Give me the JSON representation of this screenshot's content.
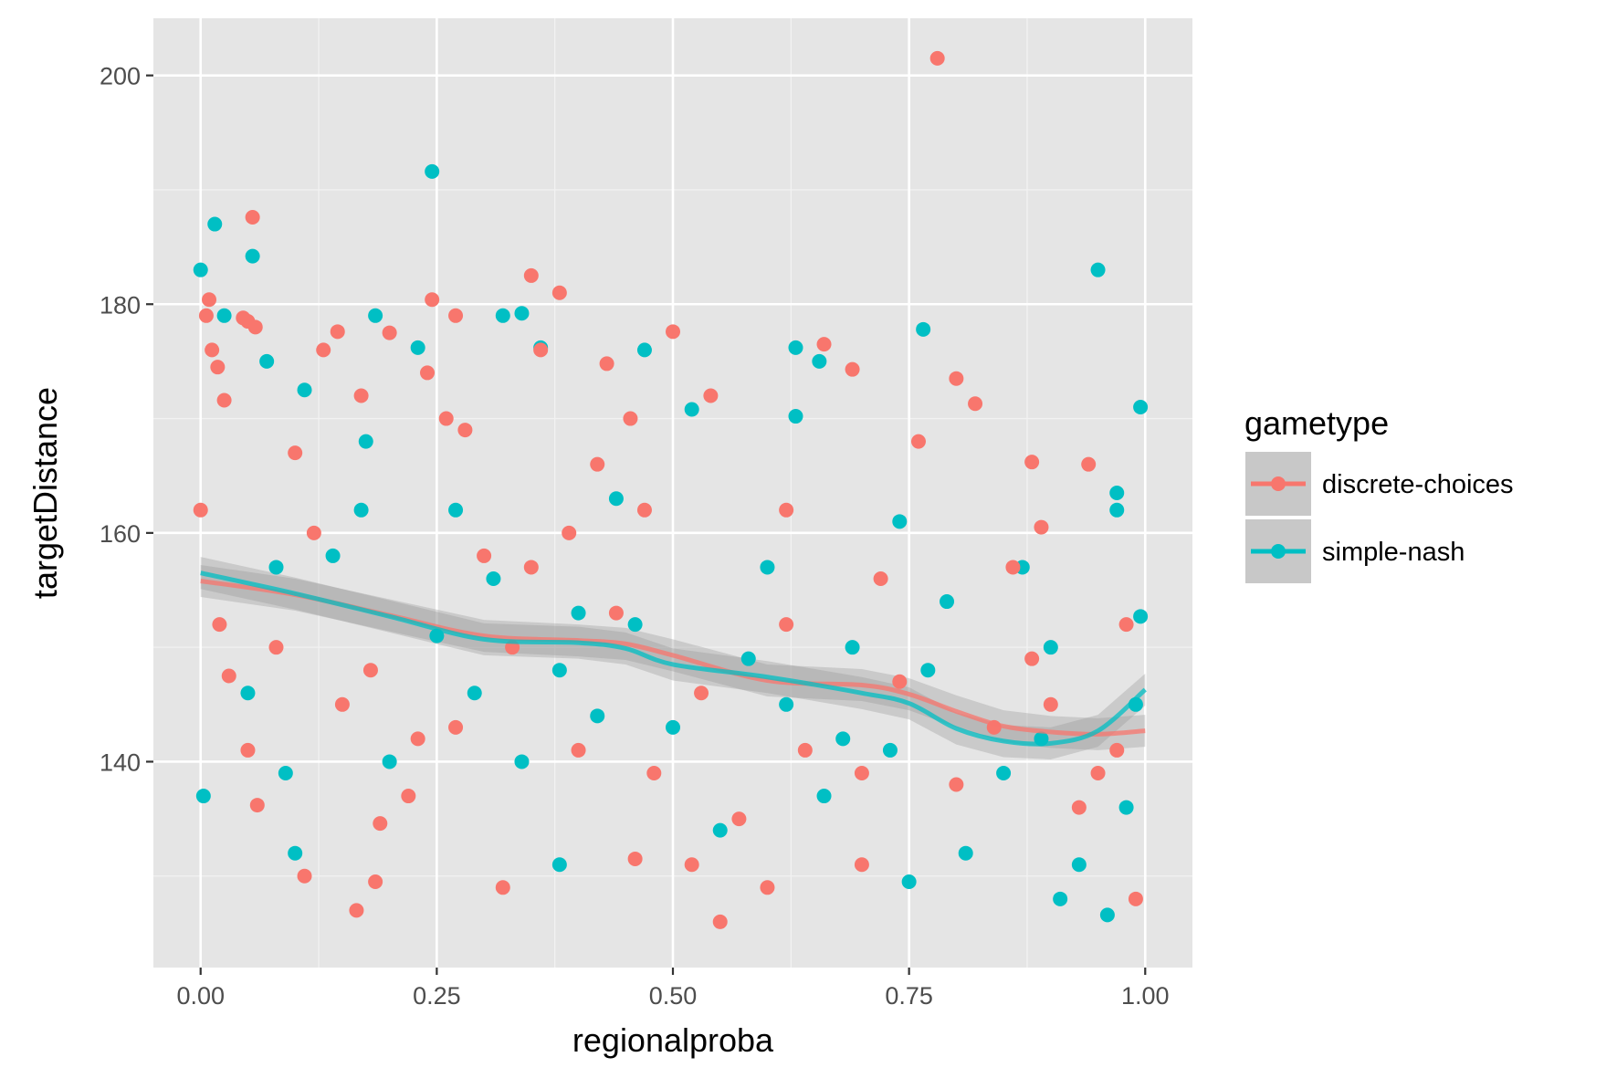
{
  "chart_data": {
    "type": "scatter",
    "title": "",
    "xlabel": "regionalproba",
    "ylabel": "targetDistance",
    "xlim": [
      -0.05,
      1.05
    ],
    "ylim": [
      122,
      205
    ],
    "x_ticks": [
      0,
      0.25,
      0.5,
      0.75,
      1
    ],
    "x_tick_labels": [
      "0.00",
      "0.25",
      "0.50",
      "0.75",
      "1.00"
    ],
    "y_ticks": [
      140,
      160,
      180,
      200
    ],
    "y_tick_labels": [
      "140",
      "160",
      "180",
      "200"
    ],
    "grid": true,
    "legend": {
      "title": "gametype",
      "placement": "right"
    },
    "series": [
      {
        "name": "discrete-choices",
        "color": "#F8766D",
        "smooth": {
          "x": [
            0,
            0.1,
            0.2,
            0.3,
            0.4,
            0.45,
            0.5,
            0.6,
            0.7,
            0.75,
            0.8,
            0.85,
            0.9,
            0.95,
            1.0
          ],
          "y": [
            155.8,
            154.6,
            152.8,
            151.0,
            150.6,
            150.3,
            149.3,
            147.1,
            146.7,
            145.9,
            144.4,
            143.1,
            142.6,
            142.4,
            142.7
          ]
        },
        "points": [
          [
            0.0,
            162.0
          ],
          [
            0.006,
            179.0
          ],
          [
            0.009,
            180.4
          ],
          [
            0.012,
            176.0
          ],
          [
            0.018,
            174.5
          ],
          [
            0.025,
            171.6
          ],
          [
            0.045,
            178.8
          ],
          [
            0.05,
            178.5
          ],
          [
            0.055,
            187.6
          ],
          [
            0.058,
            178.0
          ],
          [
            0.02,
            152.0
          ],
          [
            0.03,
            147.5
          ],
          [
            0.05,
            141.0
          ],
          [
            0.06,
            136.2
          ],
          [
            0.1,
            167.0
          ],
          [
            0.11,
            130.0
          ],
          [
            0.13,
            176.0
          ],
          [
            0.145,
            177.6
          ],
          [
            0.165,
            127.0
          ],
          [
            0.17,
            172.0
          ],
          [
            0.185,
            129.5
          ],
          [
            0.19,
            134.6
          ],
          [
            0.2,
            177.5
          ],
          [
            0.23,
            142.0
          ],
          [
            0.24,
            174.0
          ],
          [
            0.245,
            180.4
          ],
          [
            0.26,
            170.0
          ],
          [
            0.27,
            179.0
          ],
          [
            0.28,
            169.0
          ],
          [
            0.3,
            158.0
          ],
          [
            0.32,
            129.0
          ],
          [
            0.35,
            182.5
          ],
          [
            0.36,
            176.0
          ],
          [
            0.38,
            181.0
          ],
          [
            0.39,
            160.0
          ],
          [
            0.42,
            166.0
          ],
          [
            0.43,
            174.8
          ],
          [
            0.455,
            170.0
          ],
          [
            0.46,
            131.5
          ],
          [
            0.5,
            177.6
          ],
          [
            0.52,
            131.0
          ],
          [
            0.54,
            172.0
          ],
          [
            0.55,
            126.0
          ],
          [
            0.6,
            129.0
          ],
          [
            0.62,
            162.0
          ],
          [
            0.66,
            176.5
          ],
          [
            0.69,
            174.3
          ],
          [
            0.7,
            131.0
          ],
          [
            0.76,
            168.0
          ],
          [
            0.78,
            201.5
          ],
          [
            0.8,
            173.5
          ],
          [
            0.82,
            171.3
          ],
          [
            0.86,
            157.0
          ],
          [
            0.88,
            166.2
          ],
          [
            0.89,
            160.5
          ],
          [
            0.94,
            166.0
          ],
          [
            0.99,
            128.0
          ],
          [
            0.98,
            152.0
          ],
          [
            0.08,
            150.0
          ],
          [
            0.15,
            145.0
          ],
          [
            0.18,
            148.0
          ],
          [
            0.27,
            143.0
          ],
          [
            0.33,
            150.0
          ],
          [
            0.4,
            141.0
          ],
          [
            0.44,
            153.0
          ],
          [
            0.48,
            139.0
          ],
          [
            0.53,
            146.0
          ],
          [
            0.57,
            135.0
          ],
          [
            0.64,
            141.0
          ],
          [
            0.7,
            139.0
          ],
          [
            0.74,
            147.0
          ],
          [
            0.8,
            138.0
          ],
          [
            0.84,
            143.0
          ],
          [
            0.9,
            145.0
          ],
          [
            0.93,
            136.0
          ],
          [
            0.97,
            141.0
          ],
          [
            0.22,
            137.0
          ],
          [
            0.35,
            157.0
          ],
          [
            0.62,
            152.0
          ],
          [
            0.88,
            149.0
          ],
          [
            0.12,
            160.0
          ],
          [
            0.47,
            162.0
          ],
          [
            0.72,
            156.0
          ],
          [
            0.95,
            139.0
          ]
        ]
      },
      {
        "name": "simple-nash",
        "color": "#00BFC4",
        "smooth": {
          "x": [
            0,
            0.1,
            0.2,
            0.3,
            0.4,
            0.45,
            0.5,
            0.6,
            0.7,
            0.75,
            0.8,
            0.85,
            0.9,
            0.95,
            1.0
          ],
          "y": [
            156.5,
            154.7,
            152.7,
            150.7,
            150.4,
            149.9,
            148.5,
            147.4,
            146.0,
            145.1,
            142.9,
            141.8,
            141.6,
            142.7,
            146.3
          ]
        },
        "points": [
          [
            0.0,
            183.0
          ],
          [
            0.003,
            137.0
          ],
          [
            0.015,
            187.0
          ],
          [
            0.025,
            179.0
          ],
          [
            0.055,
            184.2
          ],
          [
            0.07,
            175.0
          ],
          [
            0.1,
            132.0
          ],
          [
            0.11,
            172.5
          ],
          [
            0.175,
            168.0
          ],
          [
            0.185,
            179.0
          ],
          [
            0.23,
            176.2
          ],
          [
            0.245,
            191.6
          ],
          [
            0.32,
            179.0
          ],
          [
            0.34,
            179.2
          ],
          [
            0.36,
            176.2
          ],
          [
            0.38,
            131.0
          ],
          [
            0.47,
            176.0
          ],
          [
            0.52,
            170.8
          ],
          [
            0.63,
            170.2
          ],
          [
            0.63,
            176.2
          ],
          [
            0.655,
            175.0
          ],
          [
            0.74,
            161.0
          ],
          [
            0.75,
            129.5
          ],
          [
            0.765,
            177.8
          ],
          [
            0.87,
            157.0
          ],
          [
            0.91,
            128.0
          ],
          [
            0.95,
            183.0
          ],
          [
            0.96,
            126.6
          ],
          [
            0.97,
            163.5
          ],
          [
            0.97,
            162.0
          ],
          [
            0.995,
            171.0
          ],
          [
            0.995,
            152.7
          ],
          [
            0.05,
            146.0
          ],
          [
            0.09,
            139.0
          ],
          [
            0.14,
            158.0
          ],
          [
            0.2,
            140.0
          ],
          [
            0.25,
            151.0
          ],
          [
            0.29,
            146.0
          ],
          [
            0.34,
            140.0
          ],
          [
            0.38,
            148.0
          ],
          [
            0.42,
            144.0
          ],
          [
            0.46,
            152.0
          ],
          [
            0.5,
            143.0
          ],
          [
            0.55,
            134.0
          ],
          [
            0.58,
            149.0
          ],
          [
            0.62,
            145.0
          ],
          [
            0.66,
            137.0
          ],
          [
            0.69,
            150.0
          ],
          [
            0.73,
            141.0
          ],
          [
            0.77,
            148.0
          ],
          [
            0.81,
            132.0
          ],
          [
            0.85,
            139.0
          ],
          [
            0.89,
            142.0
          ],
          [
            0.93,
            131.0
          ],
          [
            0.98,
            136.0
          ],
          [
            0.99,
            145.0
          ],
          [
            0.17,
            162.0
          ],
          [
            0.31,
            156.0
          ],
          [
            0.44,
            163.0
          ],
          [
            0.6,
            157.0
          ],
          [
            0.79,
            154.0
          ],
          [
            0.9,
            150.0
          ],
          [
            0.08,
            157.0
          ],
          [
            0.27,
            162.0
          ],
          [
            0.4,
            153.0
          ],
          [
            0.68,
            142.0
          ]
        ]
      }
    ]
  }
}
